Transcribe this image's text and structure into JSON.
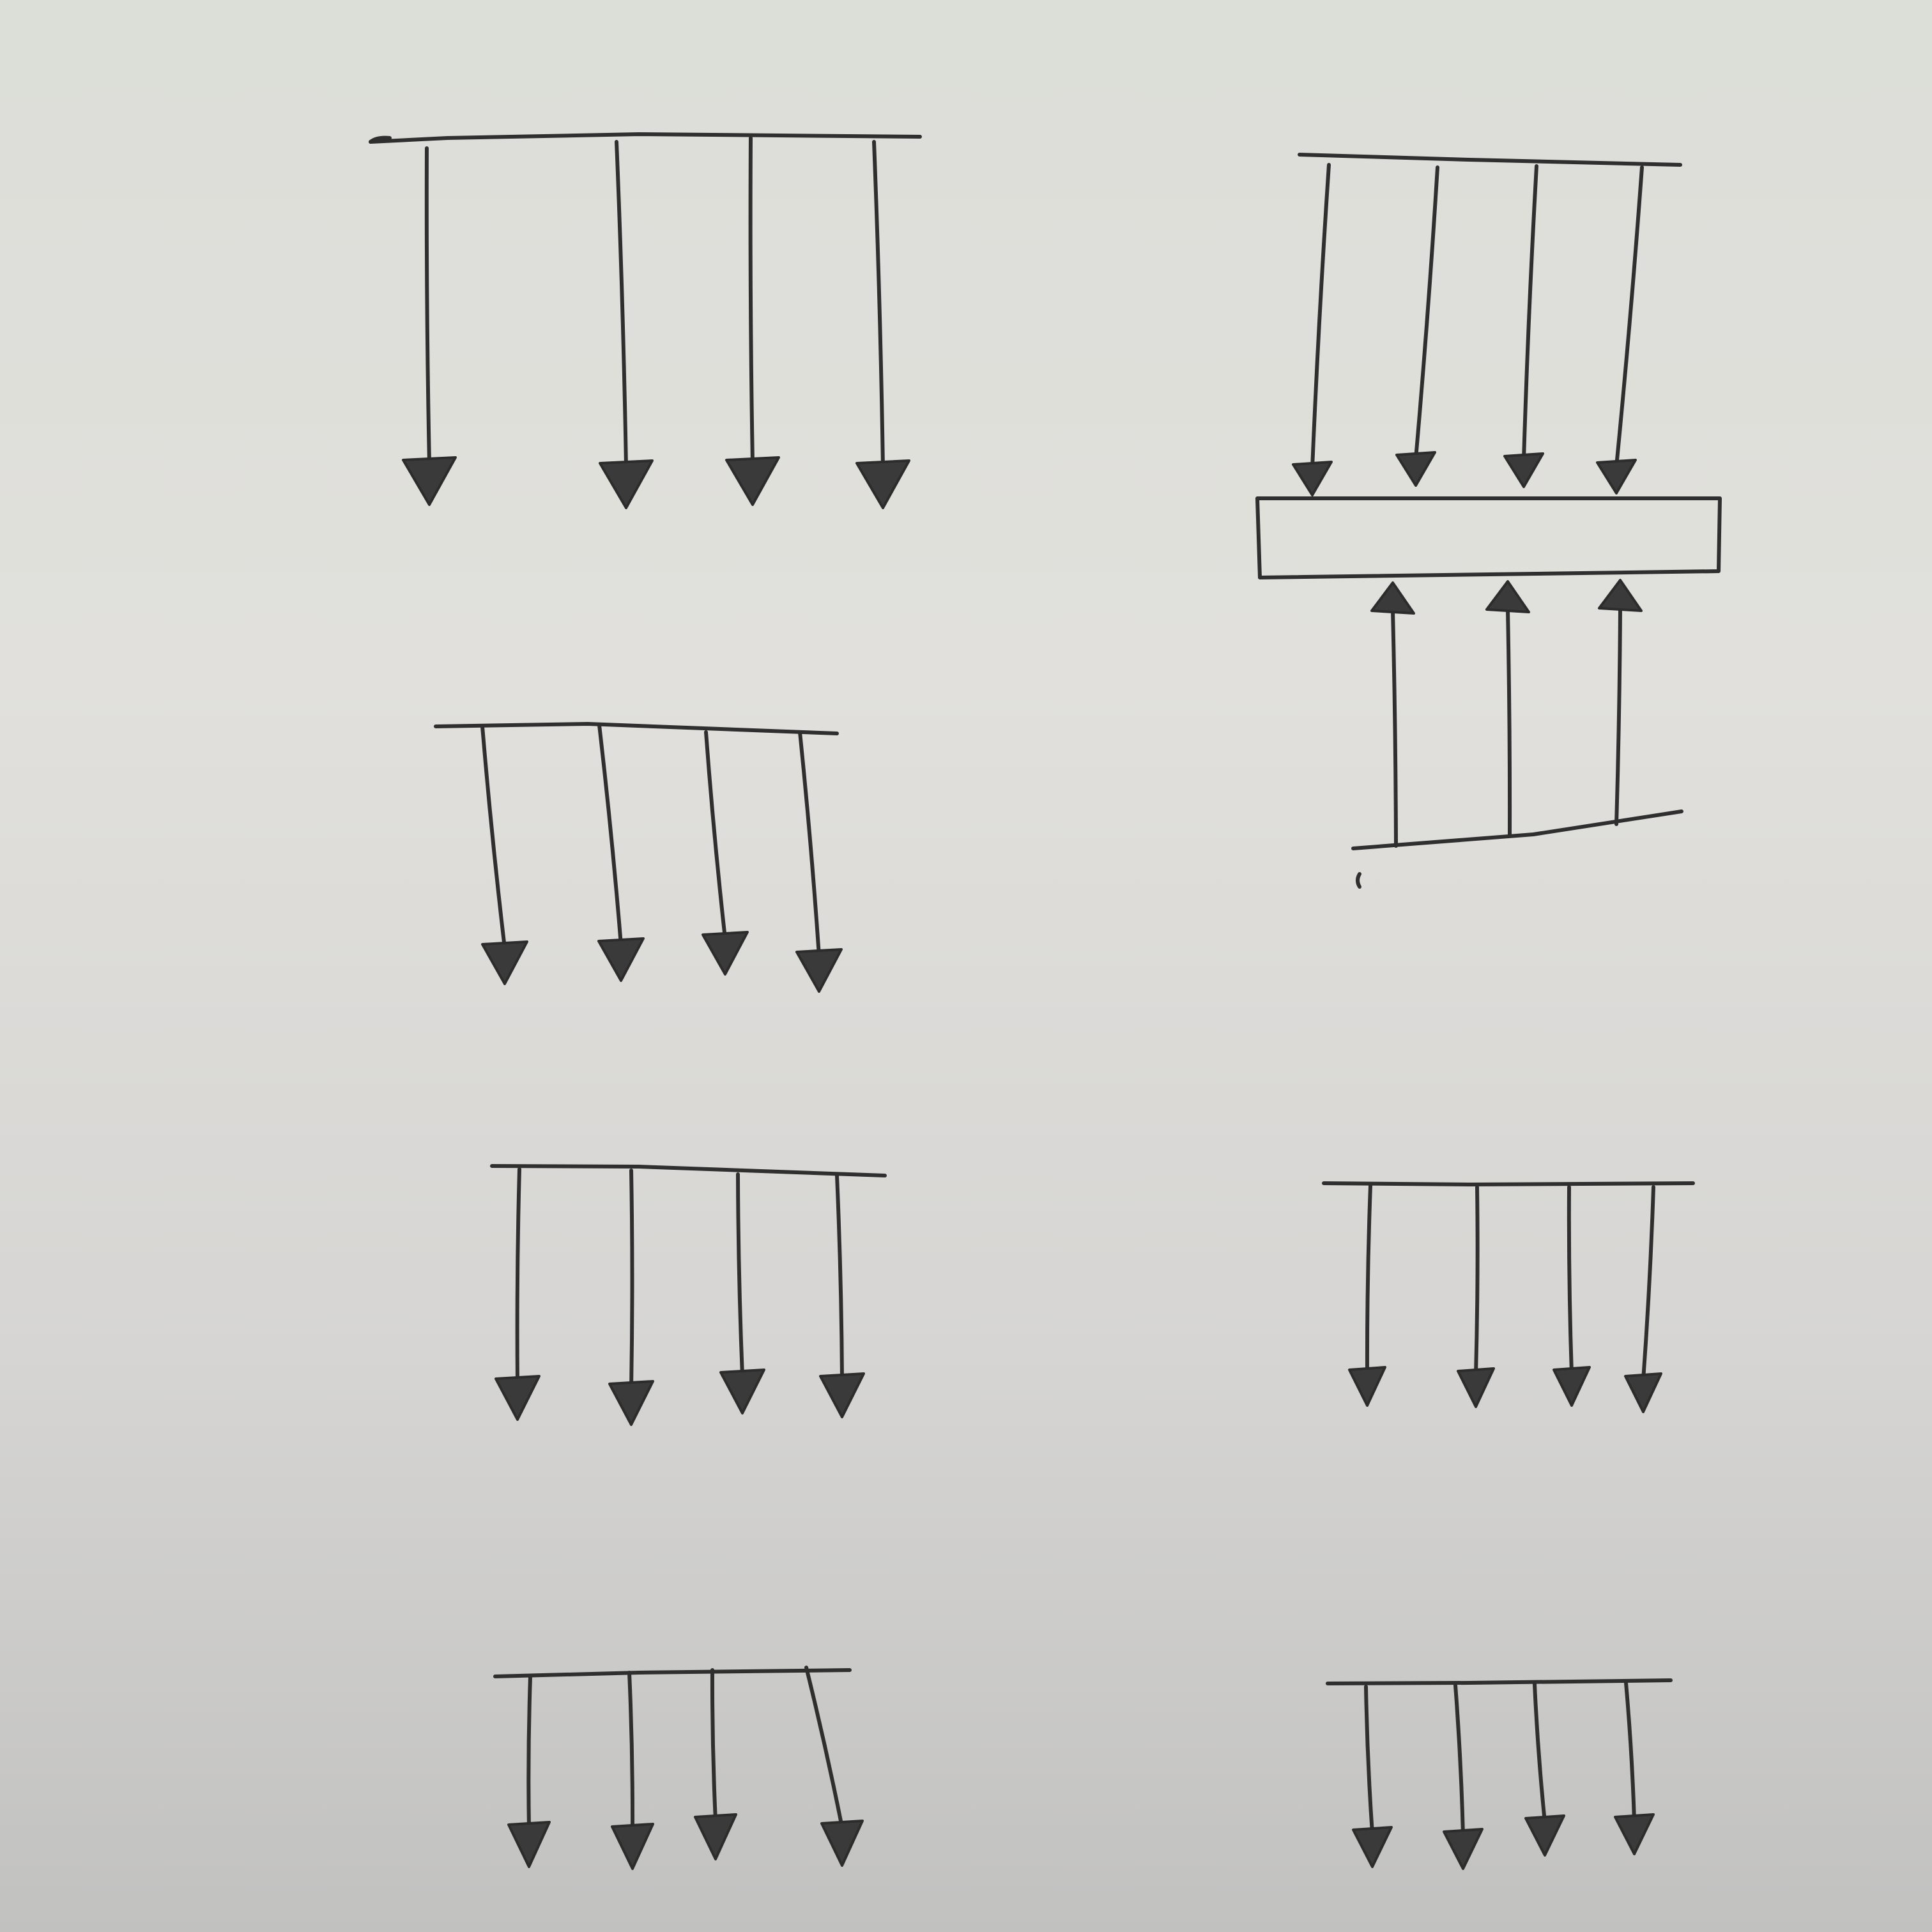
{
  "page": {
    "background": "#dcded8",
    "ink_color": "#2f2f2f"
  },
  "diagram": {
    "description_free": true,
    "groups": [
      {
        "id": "group-1",
        "arrow_count": 4,
        "direction": "down"
      },
      {
        "id": "group-2",
        "arrow_count": 4,
        "direction": "down",
        "has_block": true,
        "lower_arrow_count": 3,
        "lower_direction": "up"
      },
      {
        "id": "group-3",
        "arrow_count": 4,
        "direction": "down"
      },
      {
        "id": "group-4",
        "arrow_count": 4,
        "direction": "down"
      },
      {
        "id": "group-5",
        "arrow_count": 4,
        "direction": "down"
      },
      {
        "id": "group-6",
        "arrow_count": 4,
        "direction": "down"
      },
      {
        "id": "group-7",
        "arrow_count": 4,
        "direction": "down"
      }
    ]
  }
}
